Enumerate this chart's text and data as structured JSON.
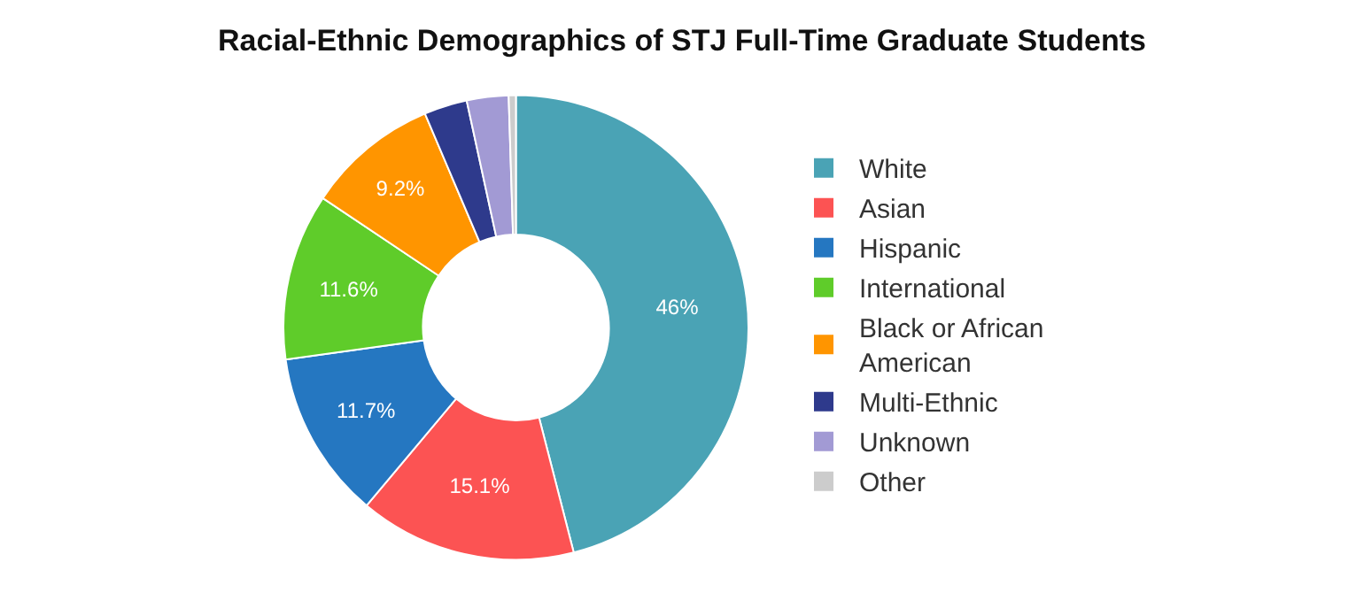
{
  "chart_data": {
    "type": "donut",
    "title": "Racial-Ethnic Demographics of STJ Full-Time Graduate Students",
    "categories": [
      "White",
      "Asian",
      "Hispanic",
      "International",
      "Black or African American",
      "Multi-Ethnic",
      "Unknown",
      "Other"
    ],
    "values": [
      46,
      15.1,
      11.7,
      11.6,
      9.2,
      3.0,
      2.9,
      0.5
    ],
    "colors": [
      "#4aa3b5",
      "#fc5353",
      "#2577c1",
      "#5fcc2a",
      "#ff9500",
      "#2e3a8c",
      "#a29ad4",
      "#cccccc"
    ],
    "value_labels": [
      "46%",
      "15.1%",
      "11.7%",
      "11.6%",
      "9.2%",
      null,
      null,
      null
    ],
    "legend": "right"
  }
}
